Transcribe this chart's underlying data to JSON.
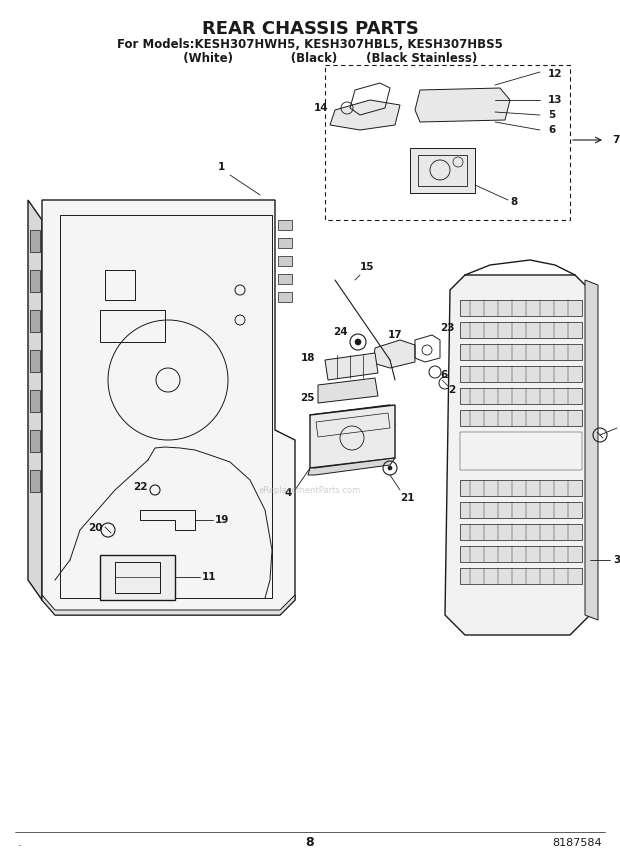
{
  "title": "REAR CHASSIS PARTS",
  "subtitle_line1": "For Models:KESH307HWH5, KESH307HBL5, KESH307HBS5",
  "subtitle_line2": "          (White)              (Black)       (Black Stainless)",
  "page_number": "8",
  "part_number": "8187584",
  "background_color": "#ffffff",
  "line_color": "#1a1a1a",
  "title_fontsize": 13,
  "subtitle_fontsize": 8.5,
  "annotation_fontsize": 7.5,
  "fig_width": 6.2,
  "fig_height": 8.56,
  "dpi": 100,
  "dot_label": "."
}
